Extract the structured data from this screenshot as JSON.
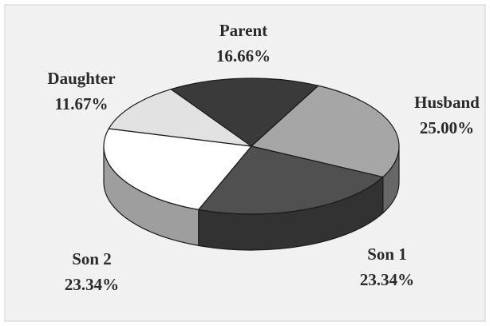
{
  "chart_data": {
    "type": "pie",
    "categories": [
      "Parent",
      "Husband",
      "Son 1",
      "Son 2",
      "Daughter"
    ],
    "values": [
      16.66,
      25.0,
      23.34,
      23.34,
      11.67
    ],
    "value_labels": [
      "16.66%",
      "25.00%",
      "23.34%",
      "23.34%",
      "11.67%"
    ],
    "colors": [
      "#3a3a3a",
      "#a6a6a6",
      "#505050",
      "#ffffff",
      "#e2e2e2"
    ]
  }
}
